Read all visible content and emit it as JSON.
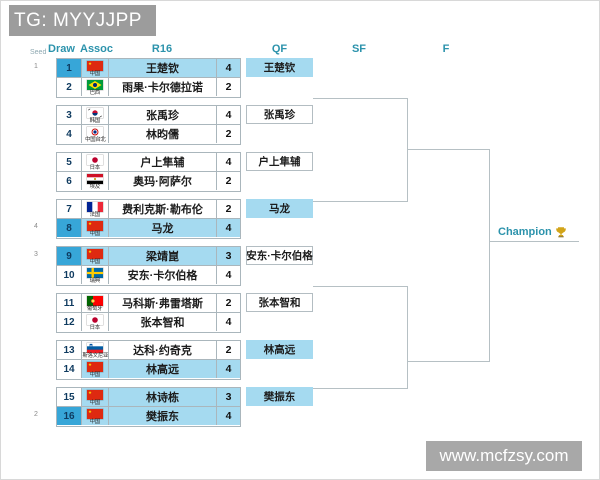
{
  "watermarks": {
    "top": "TG: MYYJJPP",
    "bottom": "www.mcfzsy.com"
  },
  "header": {
    "seed": "Seed",
    "draw": "Draw",
    "assoc": "Assoc",
    "rounds": [
      "R16",
      "QF",
      "SF",
      "F"
    ]
  },
  "seed_marks": [
    {
      "row": 1,
      "label": "1"
    },
    {
      "row": 8,
      "label": "4"
    },
    {
      "row": 9,
      "label": "3"
    },
    {
      "row": 16,
      "label": "2"
    }
  ],
  "rows": [
    {
      "draw": "1",
      "seeded": true,
      "flag": "cn",
      "assoc": "中国",
      "name": "王楚钦",
      "score": "4",
      "highlight": true
    },
    {
      "draw": "2",
      "seeded": false,
      "flag": "br",
      "assoc": "巴西",
      "name": "雨果·卡尔德拉诺",
      "score": "2",
      "highlight": false
    },
    {
      "draw": "3",
      "seeded": false,
      "flag": "kr",
      "assoc": "韩国",
      "name": "张禹珍",
      "score": "4",
      "highlight": false
    },
    {
      "draw": "4",
      "seeded": false,
      "flag": "tw",
      "assoc": "中国台北",
      "name": "林昀儒",
      "score": "2",
      "highlight": false
    },
    {
      "draw": "5",
      "seeded": false,
      "flag": "jp",
      "assoc": "日本",
      "name": "户上隼辅",
      "score": "4",
      "highlight": false
    },
    {
      "draw": "6",
      "seeded": false,
      "flag": "eg",
      "assoc": "埃及",
      "name": "奥玛·阿萨尔",
      "score": "2",
      "highlight": false
    },
    {
      "draw": "7",
      "seeded": false,
      "flag": "fr",
      "assoc": "法国",
      "name": "费利克斯·勒布伦",
      "score": "2",
      "highlight": false
    },
    {
      "draw": "8",
      "seeded": true,
      "flag": "cn",
      "assoc": "中国",
      "name": "马龙",
      "score": "4",
      "highlight": true
    },
    {
      "draw": "9",
      "seeded": true,
      "flag": "cn",
      "assoc": "中国",
      "name": "梁靖崑",
      "score": "3",
      "highlight": true
    },
    {
      "draw": "10",
      "seeded": false,
      "flag": "se",
      "assoc": "瑞典",
      "name": "安东·卡尔伯格",
      "score": "4",
      "highlight": false
    },
    {
      "draw": "11",
      "seeded": false,
      "flag": "pt",
      "assoc": "葡萄牙",
      "name": "马科斯·弗雷塔斯",
      "score": "2",
      "highlight": false
    },
    {
      "draw": "12",
      "seeded": false,
      "flag": "jp",
      "assoc": "日本",
      "name": "张本智和",
      "score": "4",
      "highlight": false
    },
    {
      "draw": "13",
      "seeded": false,
      "flag": "si",
      "assoc": "斯洛文尼亚",
      "name": "达科·约奇克",
      "score": "2",
      "highlight": false
    },
    {
      "draw": "14",
      "seeded": false,
      "flag": "cn",
      "assoc": "中国",
      "name": "林高远",
      "score": "4",
      "highlight": true
    },
    {
      "draw": "15",
      "seeded": false,
      "flag": "cn",
      "assoc": "中国",
      "name": "林诗栋",
      "score": "3",
      "highlight": true
    },
    {
      "draw": "16",
      "seeded": true,
      "flag": "cn",
      "assoc": "中国",
      "name": "樊振东",
      "score": "4",
      "highlight": true
    }
  ],
  "qf": [
    {
      "name": "王楚钦",
      "highlight": true
    },
    {
      "name": "张禹珍",
      "highlight": false
    },
    {
      "name": "户上隼辅",
      "highlight": false
    },
    {
      "name": "马龙",
      "highlight": true
    },
    {
      "name": "安东·卡尔伯格",
      "highlight": false
    },
    {
      "name": "张本智和",
      "highlight": false
    },
    {
      "name": "林高远",
      "highlight": true
    },
    {
      "name": "樊振东",
      "highlight": true
    }
  ],
  "champion_label": "Champion",
  "icons": {
    "champion": "trophy-icon"
  },
  "colors": {
    "highlight_cyan": "#a5daf0",
    "seed_blue": "#37a6d8",
    "header_teal": "#2c93ac",
    "watermark_gray": "#a0a0a0",
    "line_gray": "#b6c0c4"
  }
}
